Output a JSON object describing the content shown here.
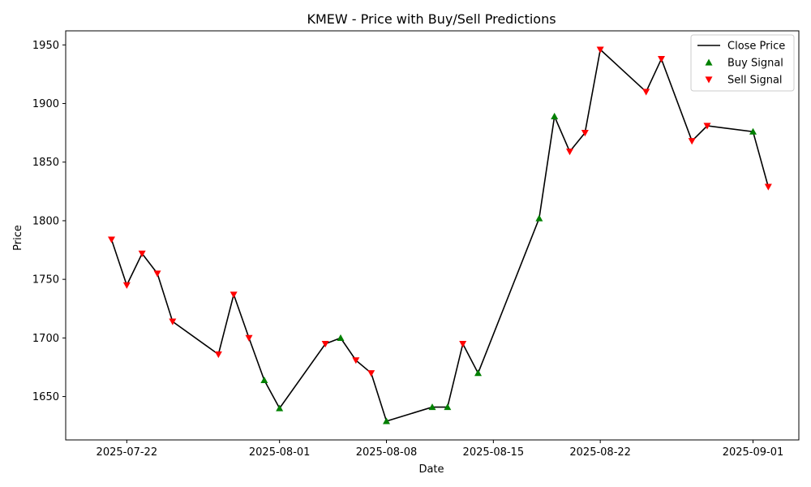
{
  "chart_data": {
    "type": "line",
    "title": "KMEW - Price with Buy/Sell Predictions",
    "xlabel": "Date",
    "ylabel": "Price",
    "x_ticks": [
      "2025-07-22",
      "2025-08-01",
      "2025-08-08",
      "2025-08-15",
      "2025-08-22",
      "2025-09-01"
    ],
    "y_ticks": [
      1650,
      1700,
      1750,
      1800,
      1850,
      1900,
      1950
    ],
    "xlim": [
      "2025-07-18",
      "2025-09-04"
    ],
    "ylim": [
      1613,
      1962
    ],
    "grid": false,
    "legend_position": "top-right",
    "colors": {
      "line": "#000000",
      "buy": "#008000",
      "sell": "#ff0000"
    },
    "series": [
      {
        "name": "Close Price",
        "points": [
          {
            "date": "2025-07-21",
            "value": 1784,
            "signal": "sell"
          },
          {
            "date": "2025-07-22",
            "value": 1745,
            "signal": "sell"
          },
          {
            "date": "2025-07-23",
            "value": 1772,
            "signal": "sell"
          },
          {
            "date": "2025-07-24",
            "value": 1755,
            "signal": "sell"
          },
          {
            "date": "2025-07-25",
            "value": 1714,
            "signal": "sell"
          },
          {
            "date": "2025-07-28",
            "value": 1686,
            "signal": "sell"
          },
          {
            "date": "2025-07-29",
            "value": 1737,
            "signal": "sell"
          },
          {
            "date": "2025-07-30",
            "value": 1700,
            "signal": "sell"
          },
          {
            "date": "2025-07-31",
            "value": 1664,
            "signal": "buy"
          },
          {
            "date": "2025-08-01",
            "value": 1640,
            "signal": "buy"
          },
          {
            "date": "2025-08-04",
            "value": 1695,
            "signal": "sell"
          },
          {
            "date": "2025-08-05",
            "value": 1700,
            "signal": "buy"
          },
          {
            "date": "2025-08-06",
            "value": 1681,
            "signal": "sell"
          },
          {
            "date": "2025-08-07",
            "value": 1670,
            "signal": "sell"
          },
          {
            "date": "2025-08-08",
            "value": 1629,
            "signal": "buy"
          },
          {
            "date": "2025-08-11",
            "value": 1641,
            "signal": "buy"
          },
          {
            "date": "2025-08-12",
            "value": 1641,
            "signal": "buy"
          },
          {
            "date": "2025-08-13",
            "value": 1695,
            "signal": "sell"
          },
          {
            "date": "2025-08-14",
            "value": 1670,
            "signal": "buy"
          },
          {
            "date": "2025-08-18",
            "value": 1802,
            "signal": "buy"
          },
          {
            "date": "2025-08-19",
            "value": 1889,
            "signal": "buy"
          },
          {
            "date": "2025-08-20",
            "value": 1859,
            "signal": "sell"
          },
          {
            "date": "2025-08-21",
            "value": 1875,
            "signal": "sell"
          },
          {
            "date": "2025-08-22",
            "value": 1946,
            "signal": "sell"
          },
          {
            "date": "2025-08-25",
            "value": 1910,
            "signal": "sell"
          },
          {
            "date": "2025-08-26",
            "value": 1938,
            "signal": "sell"
          },
          {
            "date": "2025-08-28",
            "value": 1868,
            "signal": "sell"
          },
          {
            "date": "2025-08-29",
            "value": 1881,
            "signal": "sell"
          },
          {
            "date": "2025-09-01",
            "value": 1876,
            "signal": "buy"
          },
          {
            "date": "2025-09-02",
            "value": 1829,
            "signal": "sell"
          }
        ]
      }
    ],
    "legend": [
      {
        "label": "Close Price",
        "kind": "line"
      },
      {
        "label": "Buy Signal",
        "kind": "buy"
      },
      {
        "label": "Sell Signal",
        "kind": "sell"
      }
    ]
  }
}
